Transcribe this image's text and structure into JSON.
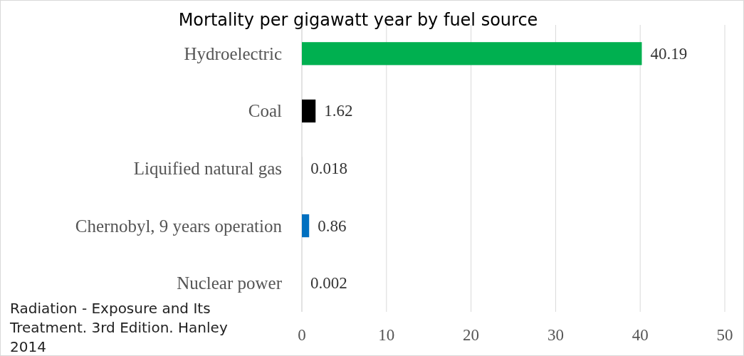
{
  "chart_data": {
    "type": "bar",
    "orientation": "horizontal",
    "title": "Mortality per gigawatt year by fuel source",
    "categories": [
      "Hydroelectric",
      "Coal",
      "Liquified natural gas",
      "Chernobyl, 9 years operation",
      "Nuclear power"
    ],
    "values": [
      40.19,
      1.62,
      0.018,
      0.86,
      0.002
    ],
    "colors": [
      "#00b050",
      "#000000",
      "#a5a5a5",
      "#0070c0",
      "#ffc000"
    ],
    "xlim": [
      0,
      50
    ],
    "xticks": [
      0,
      10,
      20,
      30,
      40,
      50
    ],
    "grid": "x",
    "data_labels": true,
    "annotations": [
      "Radiation - Exposure and Its Treatment. 3rd Edition. Hanley 2014"
    ]
  }
}
